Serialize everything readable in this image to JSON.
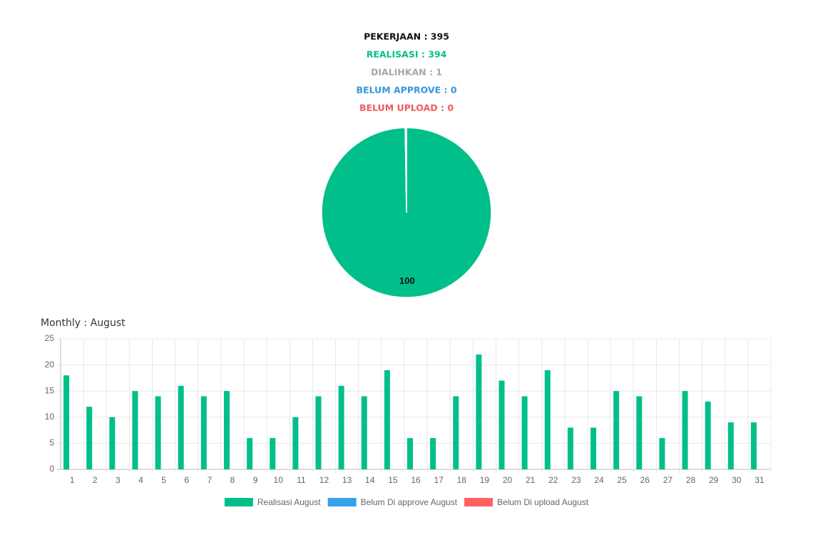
{
  "chart_data": [
    {
      "type": "pie",
      "annotations": [
        {
          "text": "PEKERJAAN : 395",
          "color": "#111111"
        },
        {
          "text": "REALISASI : 394",
          "color": "#00bf8a"
        },
        {
          "text": "DIALIHKAN : 1",
          "color": "#a6a6a6"
        },
        {
          "text": "BELUM APPROVE : 0",
          "color": "#3498db"
        },
        {
          "text": "BELUM UPLOAD : 0",
          "color": "#f05a5a"
        }
      ],
      "values": [
        99.75,
        0.25
      ],
      "value_labels": [
        "100",
        null
      ],
      "colors": [
        "#00bf8a",
        "#a6a6a6"
      ]
    },
    {
      "type": "bar",
      "title": "Monthly : August",
      "categories": [
        "1",
        "2",
        "3",
        "4",
        "5",
        "6",
        "7",
        "8",
        "9",
        "10",
        "11",
        "12",
        "13",
        "14",
        "15",
        "16",
        "17",
        "18",
        "19",
        "20",
        "21",
        "22",
        "23",
        "24",
        "25",
        "26",
        "27",
        "28",
        "29",
        "30",
        "31"
      ],
      "series": [
        {
          "name": "Realisasi August",
          "color": "#00bf8a",
          "values": [
            18,
            12,
            10,
            15,
            14,
            16,
            14,
            15,
            6,
            6,
            10,
            14,
            16,
            14,
            19,
            6,
            6,
            14,
            22,
            17,
            14,
            19,
            8,
            8,
            15,
            14,
            6,
            15,
            13,
            9,
            9
          ]
        },
        {
          "name": "Belum Di approve August",
          "color": "#36a2eb",
          "values": [
            0,
            0,
            0,
            0,
            0,
            0,
            0,
            0,
            0,
            0,
            0,
            0,
            0,
            0,
            0,
            0,
            0,
            0,
            0,
            0,
            0,
            0,
            0,
            0,
            0,
            0,
            0,
            0,
            0,
            0,
            0
          ]
        },
        {
          "name": "Belum Di upload August",
          "color": "#ff6060",
          "values": [
            0,
            0,
            0,
            0,
            0,
            0,
            0,
            0,
            0,
            0,
            0,
            0,
            0,
            0,
            0,
            0,
            0,
            0,
            0,
            0,
            0,
            0,
            0,
            0,
            0,
            0,
            0,
            0,
            0,
            0,
            0
          ]
        }
      ],
      "ylim": [
        0,
        25
      ],
      "yticks": [
        0,
        5,
        10,
        15,
        20,
        25
      ],
      "grid": true,
      "legend": "bottom"
    }
  ]
}
